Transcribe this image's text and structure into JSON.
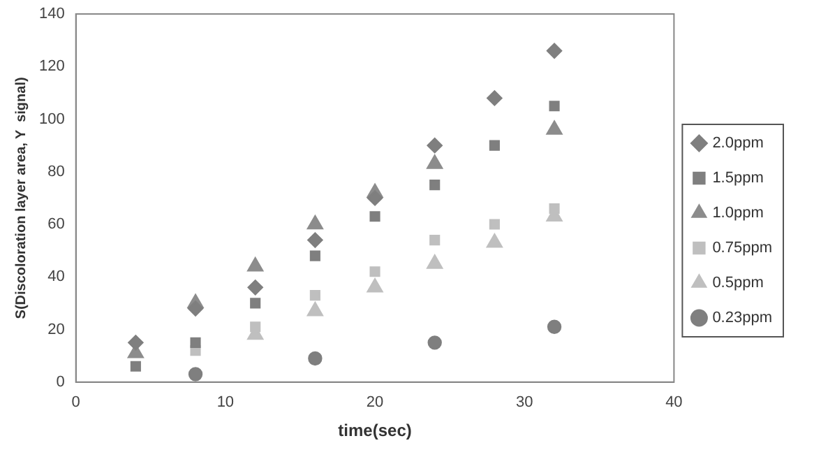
{
  "chart_data": {
    "type": "scatter",
    "xlabel": "time(sec)",
    "ylabel": "S(Discoloration layer area, Y  signal)",
    "xlim": [
      0,
      40
    ],
    "xticks": [
      0,
      10,
      20,
      30,
      40
    ],
    "ylim": [
      0,
      140
    ],
    "yticks": [
      0,
      20,
      40,
      60,
      80,
      100,
      120,
      140
    ],
    "grid": false,
    "legend": "right",
    "series": [
      {
        "name": "2.0ppm",
        "color": "#7f7f7f",
        "marker": "diamond",
        "x": [
          4,
          8,
          12,
          16,
          20,
          24,
          28,
          32
        ],
        "values": [
          15,
          28,
          36,
          54,
          70,
          90,
          108,
          126
        ]
      },
      {
        "name": "1.5ppm",
        "color": "#7f7f7f",
        "marker": "square",
        "x": [
          4,
          8,
          12,
          16,
          20,
          24,
          28,
          32
        ],
        "values": [
          6,
          15,
          30,
          48,
          63,
          75,
          90,
          105
        ]
      },
      {
        "name": "1.0ppm",
        "color": "#8c8c8c",
        "marker": "triangle",
        "x": [
          4,
          8,
          12,
          16,
          20,
          24,
          28,
          32
        ],
        "values": [
          11,
          30,
          44,
          60,
          72,
          83,
          null,
          96
        ]
      },
      {
        "name": "0.75ppm",
        "color": "#bfbfbf",
        "marker": "square",
        "x": [
          8,
          12,
          16,
          20,
          24,
          28,
          32
        ],
        "values": [
          12,
          21,
          33,
          42,
          54,
          60,
          66
        ]
      },
      {
        "name": "0.5ppm",
        "color": "#bfbfbf",
        "marker": "triangle",
        "x": [
          12,
          16,
          20,
          24,
          28,
          32
        ],
        "values": [
          18,
          27,
          36,
          45,
          53,
          63
        ]
      },
      {
        "name": "0.23ppm",
        "color": "#7f7f7f",
        "marker": "circle",
        "x": [
          8,
          16,
          24,
          32
        ],
        "values": [
          3,
          9,
          15,
          21
        ]
      }
    ]
  }
}
